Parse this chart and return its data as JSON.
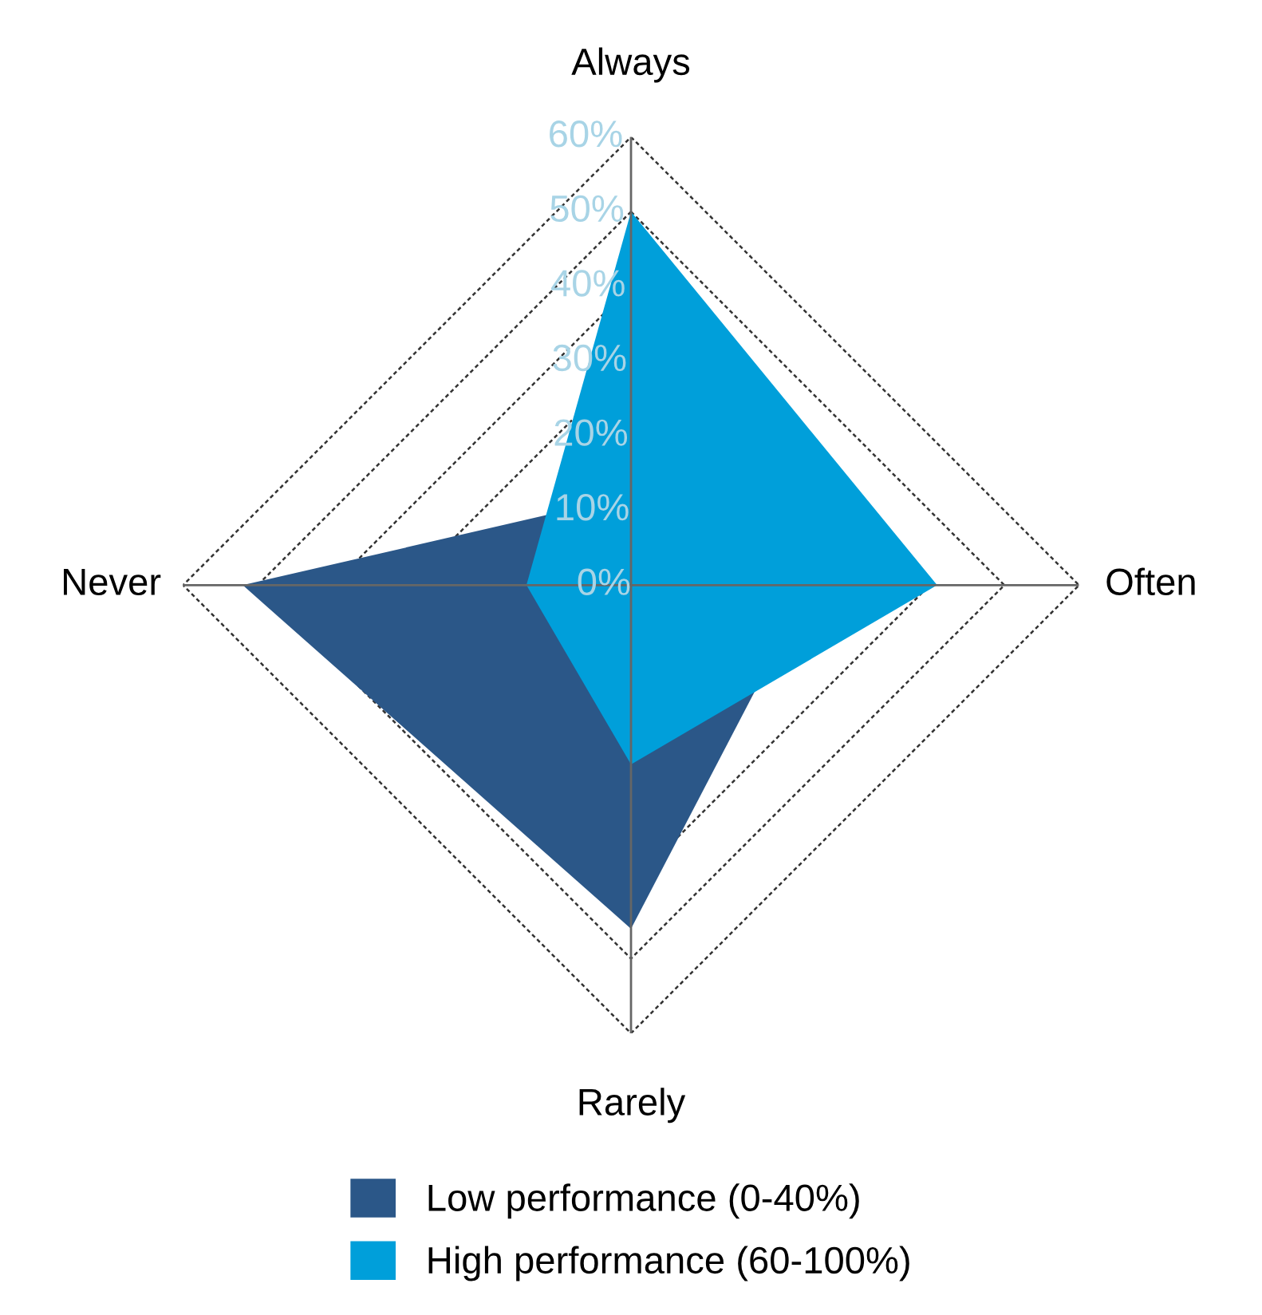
{
  "chart_data": {
    "type": "radar",
    "categories": [
      "Always",
      "Often",
      "Rarely",
      "Never"
    ],
    "series": [
      {
        "name": "Low performance (0-40%)",
        "color": "#2b5788",
        "values": [
          12,
          24,
          46,
          52
        ]
      },
      {
        "name": "High performance (60-100%)",
        "color": "#009fda",
        "values": [
          50,
          41,
          24,
          14
        ]
      }
    ],
    "ylim": [
      0,
      60
    ],
    "yticks": [
      {
        "value": 0,
        "label": "0%"
      },
      {
        "value": 10,
        "label": "10%"
      },
      {
        "value": 20,
        "label": "20%"
      },
      {
        "value": 30,
        "label": "30%"
      },
      {
        "value": 40,
        "label": "40%"
      },
      {
        "value": 50,
        "label": "50%"
      },
      {
        "value": 60,
        "label": "60%"
      }
    ],
    "grid": true,
    "legend": "bottom"
  }
}
